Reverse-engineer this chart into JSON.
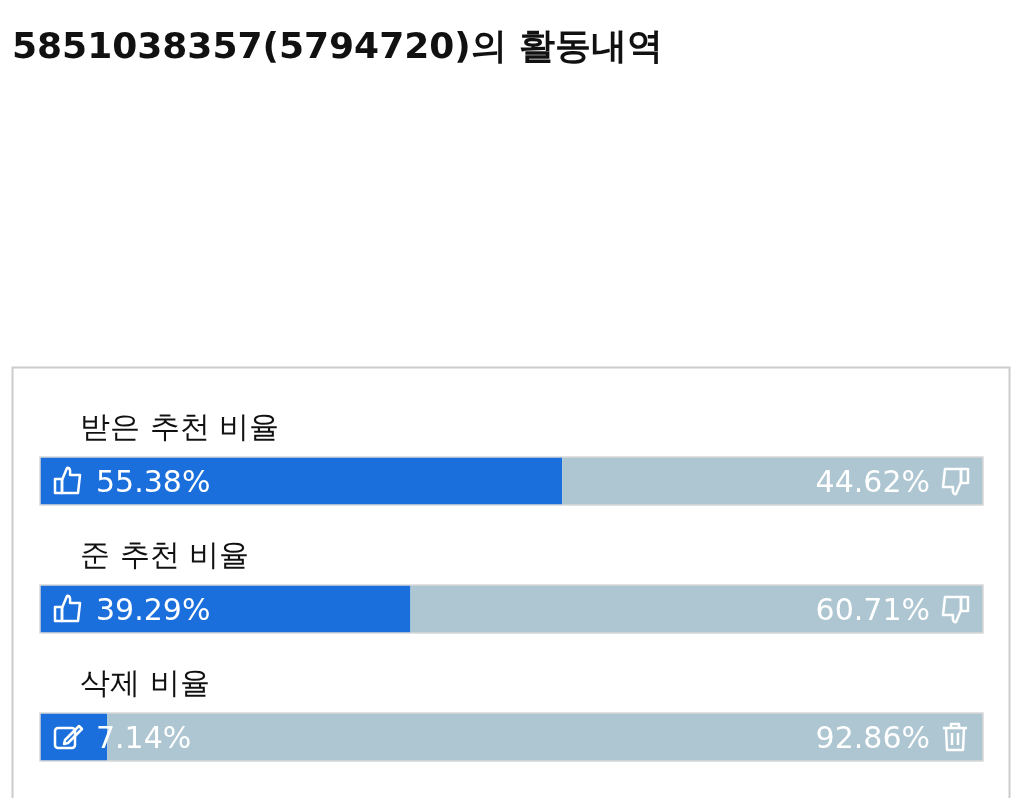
{
  "chart_data": {
    "type": "bar",
    "orientation": "horizontal",
    "stacked": true,
    "title": "5851038357(5794720)의 활동내역",
    "categories": [
      "받은 추천 비율",
      "준 추천 비율",
      "삭제 비율"
    ],
    "series": [
      {
        "color": "#1a6fdc",
        "values": [
          55.38,
          39.29,
          7.14
        ],
        "value_labels": [
          "55.38%",
          "39.29%",
          "7.14%"
        ]
      },
      {
        "color": "#adc6d1",
        "values": [
          44.62,
          60.71,
          92.86
        ],
        "value_labels": [
          "44.62%",
          "60.71%",
          "92.86%"
        ]
      }
    ],
    "xlim": [
      0,
      100
    ]
  }
}
